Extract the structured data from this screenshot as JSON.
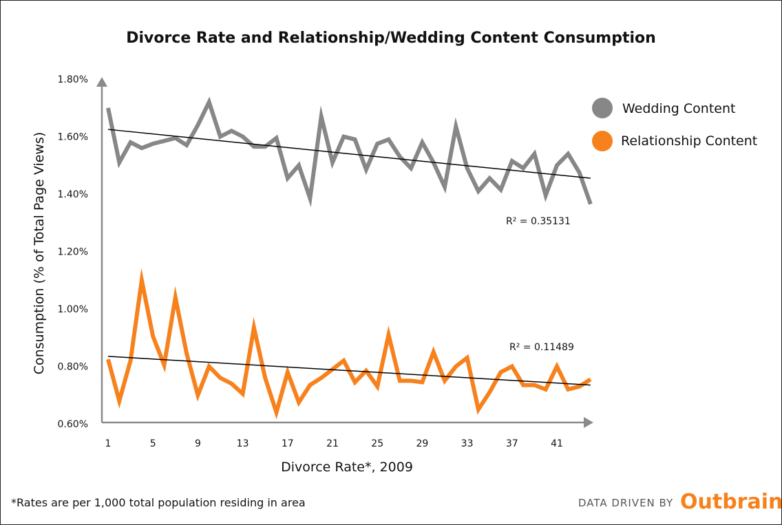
{
  "chart_data": {
    "type": "line",
    "title": "Divorce Rate and Relationship/Wedding Content Consumption",
    "xlabel": "Divorce Rate*, 2009",
    "ylabel": "Consumption (% of Total Page Views)",
    "x_tick_labels": [
      "1",
      "5",
      "9",
      "13",
      "17",
      "21",
      "25",
      "29",
      "33",
      "37",
      "41"
    ],
    "y_tick_labels": [
      "1.80%",
      "1.60%",
      "1.40%",
      "1.20%",
      "1.00%",
      "0.80%",
      "0.60%"
    ],
    "ylim": [
      0.6,
      1.8
    ],
    "x": [
      1,
      2,
      3,
      4,
      5,
      6,
      7,
      8,
      9,
      10,
      11,
      12,
      13,
      14,
      15,
      16,
      17,
      18,
      19,
      20,
      21,
      22,
      23,
      24,
      25,
      26,
      27,
      28,
      29,
      30,
      31,
      32,
      33,
      34,
      35,
      36,
      37,
      38,
      39,
      40,
      41,
      42,
      43,
      44
    ],
    "legend_position": "right",
    "grid": false,
    "series": [
      {
        "name": "Wedding Content",
        "color": "#878787",
        "values": [
          1.7,
          1.51,
          1.58,
          1.56,
          1.575,
          1.585,
          1.595,
          1.57,
          1.64,
          1.72,
          1.6,
          1.62,
          1.6,
          1.565,
          1.565,
          1.595,
          1.455,
          1.5,
          1.385,
          1.67,
          1.51,
          1.6,
          1.59,
          1.485,
          1.575,
          1.59,
          1.53,
          1.49,
          1.58,
          1.51,
          1.425,
          1.635,
          1.49,
          1.41,
          1.455,
          1.415,
          1.515,
          1.49,
          1.54,
          1.395,
          1.5,
          1.54,
          1.475,
          1.365
        ],
        "trendline": {
          "start": 1.625,
          "end": 1.455,
          "r2_label": "R² = 0.35131"
        }
      },
      {
        "name": "Relationship Content",
        "color": "#f7811c",
        "values": [
          0.825,
          0.68,
          0.82,
          1.1,
          0.905,
          0.805,
          1.04,
          0.845,
          0.7,
          0.8,
          0.76,
          0.74,
          0.705,
          0.935,
          0.76,
          0.64,
          0.78,
          0.675,
          0.735,
          0.76,
          0.79,
          0.82,
          0.745,
          0.785,
          0.73,
          0.91,
          0.75,
          0.75,
          0.745,
          0.85,
          0.75,
          0.8,
          0.83,
          0.65,
          0.71,
          0.78,
          0.8,
          0.735,
          0.735,
          0.72,
          0.8,
          0.72,
          0.73,
          0.755
        ],
        "trendline": {
          "start": 0.835,
          "end": 0.735,
          "r2_label": "R² = 0.11489"
        }
      }
    ]
  },
  "footnote": "*Rates are per 1,000 total population residing in area",
  "credit": {
    "prefix": "DATA DRIVEN BY",
    "brand": "Outbrain",
    "brand_color": "#f7811c"
  }
}
